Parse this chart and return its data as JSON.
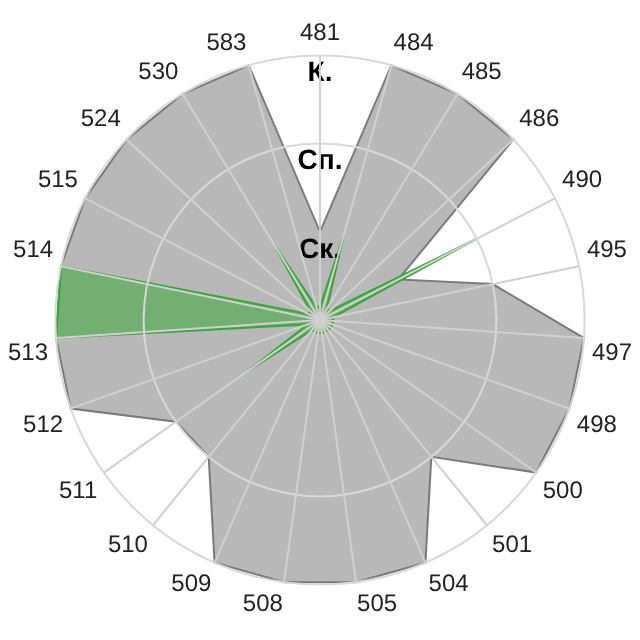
{
  "chart_data": {
    "type": "radar",
    "categories": [
      "481",
      "484",
      "485",
      "486",
      "490",
      "495",
      "497",
      "498",
      "500",
      "501",
      "504",
      "505",
      "508",
      "509",
      "510",
      "511",
      "512",
      "513",
      "514",
      "515",
      "524",
      "530",
      "583"
    ],
    "series": [
      {
        "color": "#b8b8b8",
        "values": [
          1,
          3,
          3,
          3,
          1,
          2,
          3,
          3,
          3,
          2,
          3,
          3,
          3,
          3,
          2,
          2,
          3,
          3,
          3,
          3,
          3,
          3,
          3
        ]
      },
      {
        "color": "#3aa63a",
        "values": [
          0.15,
          1,
          0.15,
          0.15,
          2,
          0.15,
          0.15,
          0.15,
          0.15,
          0.15,
          0.15,
          0.15,
          0.15,
          0.15,
          0.15,
          1,
          0.15,
          3,
          3,
          0.15,
          0.15,
          1,
          0.15
        ]
      }
    ],
    "ylim": [
      0,
      3
    ],
    "yticks": [
      {
        "value": 1,
        "label": "Ск."
      },
      {
        "value": 2,
        "label": "Сп."
      },
      {
        "value": 3,
        "label": "К."
      }
    ],
    "grid": true,
    "legend": false
  }
}
